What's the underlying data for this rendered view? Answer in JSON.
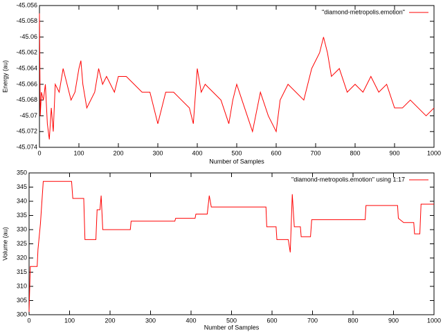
{
  "chart_data": [
    {
      "type": "line",
      "ylabel": "Energy (au)",
      "xlabel": "Number of Samples",
      "xlim": [
        0,
        1000
      ],
      "xticks": [
        0,
        100,
        200,
        300,
        400,
        500,
        600,
        700,
        800,
        900,
        1000
      ],
      "ylim": [
        -45.074,
        -45.056
      ],
      "yticks": [
        -45.074,
        -45.072,
        -45.07,
        -45.068,
        -45.066,
        -45.064,
        -45.062,
        -45.06,
        -45.058,
        -45.056
      ],
      "legend": "top-right",
      "series": [
        {
          "name": "\"diamond-metropolis.emotion\"",
          "color": "#ff0000",
          "x": [
            0,
            2,
            5,
            10,
            15,
            20,
            25,
            30,
            35,
            40,
            50,
            60,
            70,
            80,
            90,
            100,
            105,
            110,
            120,
            140,
            150,
            160,
            170,
            180,
            190,
            200,
            220,
            240,
            260,
            280,
            300,
            320,
            340,
            360,
            380,
            390,
            400,
            410,
            420,
            440,
            460,
            480,
            490,
            500,
            520,
            540,
            560,
            580,
            600,
            610,
            630,
            650,
            670,
            690,
            710,
            720,
            730,
            740,
            760,
            780,
            800,
            820,
            840,
            860,
            880,
            900,
            920,
            940,
            960,
            980,
            1000
          ],
          "values": [
            -45.057,
            -45.07,
            -45.067,
            -45.068,
            -45.066,
            -45.071,
            -45.073,
            -45.069,
            -45.072,
            -45.066,
            -45.067,
            -45.064,
            -45.066,
            -45.068,
            -45.067,
            -45.064,
            -45.063,
            -45.066,
            -45.069,
            -45.067,
            -45.064,
            -45.066,
            -45.065,
            -45.066,
            -45.067,
            -45.065,
            -45.065,
            -45.066,
            -45.067,
            -45.067,
            -45.071,
            -45.067,
            -45.067,
            -45.068,
            -45.069,
            -45.071,
            -45.064,
            -45.067,
            -45.066,
            -45.067,
            -45.068,
            -45.071,
            -45.068,
            -45.066,
            -45.069,
            -45.072,
            -45.067,
            -45.07,
            -45.072,
            -45.068,
            -45.066,
            -45.067,
            -45.068,
            -45.064,
            -45.062,
            -45.06,
            -45.062,
            -45.065,
            -45.064,
            -45.067,
            -45.066,
            -45.067,
            -45.065,
            -45.067,
            -45.066,
            -45.069,
            -45.069,
            -45.068,
            -45.069,
            -45.07,
            -45.069
          ]
        }
      ]
    },
    {
      "type": "line",
      "ylabel": "Volume (au)",
      "xlabel": "Number of Samples",
      "xlim": [
        0,
        1000
      ],
      "xticks": [
        0,
        100,
        200,
        300,
        400,
        500,
        600,
        700,
        800,
        900,
        1000
      ],
      "ylim": [
        300,
        350
      ],
      "yticks": [
        300,
        305,
        310,
        315,
        320,
        325,
        330,
        335,
        340,
        345,
        350
      ],
      "legend": "top-right",
      "series": [
        {
          "name": "\"diamond-metropolis.emotion\" using 1:17",
          "color": "#ff0000",
          "x": [
            0,
            3,
            20,
            22,
            28,
            35,
            105,
            108,
            135,
            138,
            165,
            168,
            175,
            178,
            182,
            250,
            252,
            360,
            362,
            410,
            412,
            440,
            445,
            450,
            585,
            587,
            610,
            612,
            640,
            645,
            650,
            655,
            670,
            672,
            695,
            698,
            830,
            832,
            910,
            912,
            925,
            950,
            952,
            965,
            968,
            1000
          ],
          "values": [
            301,
            317,
            317,
            323,
            332,
            347,
            347,
            341,
            341,
            326.5,
            326.5,
            337,
            337,
            342,
            330,
            330,
            333,
            333,
            334,
            334,
            335.5,
            335.5,
            342,
            338,
            338,
            331,
            331,
            326.5,
            326.5,
            322,
            342.5,
            331,
            331,
            327.5,
            327.5,
            333.5,
            333.5,
            338.5,
            338.5,
            334,
            332.5,
            332.5,
            328.5,
            328.5,
            339,
            339
          ]
        }
      ]
    }
  ]
}
